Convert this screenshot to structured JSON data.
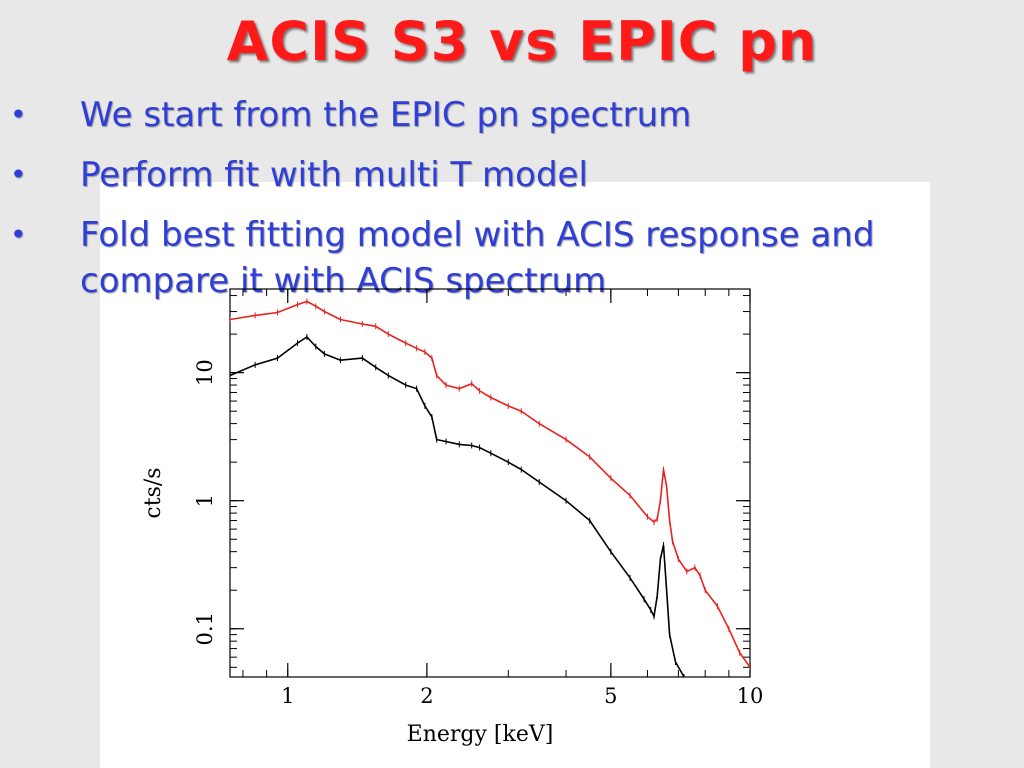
{
  "slide": {
    "title": "ACIS S3 vs EPIC pn",
    "bullets": [
      "We start from the EPIC pn spectrum",
      "Perform fit with multi T model",
      "Fold best fitting model with ACIS response and compare it with ACIS spectrum"
    ],
    "bullet_symbol": "•"
  },
  "colors": {
    "title": "#ff1a1a",
    "bullets": "#2f3ed8",
    "series_upper": "#e8221f",
    "series_lower": "#000000",
    "background": "#e8e8e8"
  },
  "chart_data": {
    "type": "line",
    "xlabel": "Energy [keV]",
    "ylabel": "cts/s",
    "xscale": "log",
    "yscale": "log",
    "xlim": [
      0.75,
      10
    ],
    "ylim": [
      0.042,
      45
    ],
    "xticks": [
      {
        "value": 1,
        "label": "1"
      },
      {
        "value": 2,
        "label": "2"
      },
      {
        "value": 5,
        "label": "5"
      },
      {
        "value": 10,
        "label": "10"
      }
    ],
    "yticks": [
      {
        "value": 0.1,
        "label": "0.1"
      },
      {
        "value": 1,
        "label": "1"
      },
      {
        "value": 10,
        "label": "10"
      }
    ],
    "series": [
      {
        "color": "#e8221f",
        "x": [
          0.75,
          0.85,
          0.95,
          1.05,
          1.1,
          1.15,
          1.2,
          1.3,
          1.45,
          1.55,
          1.65,
          1.8,
          1.9,
          1.98,
          2.05,
          2.1,
          2.2,
          2.35,
          2.5,
          2.6,
          2.75,
          3.0,
          3.2,
          3.5,
          4.0,
          4.5,
          5.0,
          5.5,
          6.0,
          6.2,
          6.3,
          6.4,
          6.5,
          6.6,
          6.7,
          6.8,
          7.0,
          7.3,
          7.6,
          7.8,
          8.0,
          8.5,
          9.0,
          9.5,
          10.0
        ],
        "y": [
          26,
          28,
          29.5,
          34,
          36,
          33,
          30,
          26,
          24,
          23,
          20,
          17,
          15.5,
          14.5,
          13,
          9.5,
          8,
          7.5,
          8.2,
          7.2,
          6.4,
          5.5,
          5.0,
          4.0,
          3.0,
          2.2,
          1.5,
          1.1,
          0.75,
          0.68,
          0.72,
          1.0,
          1.75,
          1.3,
          0.7,
          0.48,
          0.35,
          0.28,
          0.3,
          0.26,
          0.2,
          0.15,
          0.1,
          0.065,
          0.05
        ]
      },
      {
        "color": "#000000",
        "x": [
          0.75,
          0.85,
          0.95,
          1.05,
          1.1,
          1.15,
          1.2,
          1.3,
          1.45,
          1.55,
          1.65,
          1.8,
          1.9,
          1.98,
          2.05,
          2.1,
          2.2,
          2.35,
          2.5,
          2.6,
          2.75,
          3.0,
          3.2,
          3.5,
          4.0,
          4.5,
          5.0,
          5.5,
          5.9,
          6.1,
          6.2,
          6.3,
          6.4,
          6.5,
          6.6,
          6.7,
          6.9,
          7.2
        ],
        "y": [
          9.5,
          11.5,
          13,
          17,
          19,
          16,
          14,
          12.5,
          13,
          11,
          9.5,
          8,
          7.5,
          5.5,
          4.5,
          3.0,
          2.9,
          2.75,
          2.7,
          2.6,
          2.35,
          2.0,
          1.75,
          1.4,
          1.0,
          0.7,
          0.4,
          0.25,
          0.17,
          0.14,
          0.125,
          0.18,
          0.35,
          0.45,
          0.2,
          0.09,
          0.055,
          0.042
        ]
      }
    ]
  }
}
